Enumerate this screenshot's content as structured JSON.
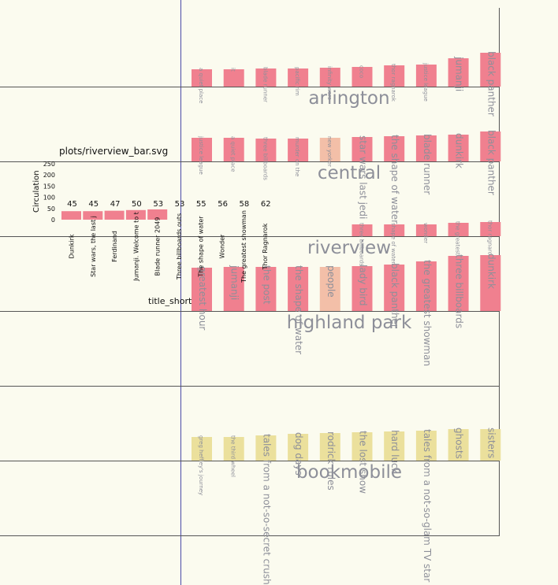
{
  "chart_data": [
    {
      "type": "bar",
      "title": "arlington",
      "color": "#f0808f",
      "categories": [
        "a quiet place",
        "it",
        "blade runner",
        "pacific rim",
        "infinity wars",
        "coco",
        "thor ragnarok",
        "justice league",
        "jumanji",
        "black panther"
      ],
      "values": [
        22,
        22,
        23,
        23,
        24,
        25,
        27,
        28,
        36,
        43
      ]
    },
    {
      "type": "bar",
      "title": "central",
      "color": "#f0808f",
      "categories": [
        "justice league",
        "a quiet place",
        "three billboards",
        "murder on the",
        "new yorker",
        "star wars last jedi",
        "the shape of water",
        "blade runner",
        "dunkirk",
        "black panther"
      ],
      "values": [
        30,
        30,
        29,
        29,
        30,
        31,
        32,
        33,
        34,
        38
      ],
      "colors": [
        "#f0808f",
        "#f0808f",
        "#f0808f",
        "#f0808f",
        "#f3bfa8",
        "#f0808f",
        "#f0808f",
        "#f0808f",
        "#f0808f",
        "#f0808f"
      ]
    },
    {
      "type": "bar",
      "title": "riverview",
      "color": "#f0808f",
      "categories": [
        "three billboards",
        "shape of water",
        "wonder",
        "the greatest showman",
        "thor ragnarok"
      ],
      "values": [
        15,
        15,
        15,
        17,
        18
      ]
    },
    {
      "type": "bar",
      "title": "highland park",
      "color": "#f0808f",
      "categories": [
        "greatest hour",
        "jumanji",
        "the post",
        "the shape of water",
        "people",
        "lady bird",
        "black panther",
        "the greatest showman",
        "three billboards",
        "dunkirk"
      ],
      "values": [
        55,
        56,
        56,
        56,
        56,
        57,
        59,
        63,
        70,
        71
      ],
      "colors": [
        "#f0808f",
        "#f0808f",
        "#f0808f",
        "#f0808f",
        "#f3bfa8",
        "#f0808f",
        "#f0808f",
        "#f0808f",
        "#f0808f",
        "#f0808f"
      ]
    },
    {
      "type": "bar",
      "title": "",
      "color": "#f0808f",
      "categories": [],
      "values": []
    },
    {
      "type": "bar",
      "title": "bookmobile",
      "color": "#ebe09c",
      "categories": [
        "greg heffley's journey",
        "the third wheel",
        "tales from a not-so-secret crush",
        "dog days",
        "rodrick rules",
        "the lost show",
        "hard luck",
        "tales from a not-so-glam TV star",
        "ghosts",
        "sisters"
      ],
      "values": [
        30,
        30,
        32,
        34,
        35,
        36,
        37,
        38,
        40,
        40
      ]
    },
    {
      "type": "bar",
      "title": "",
      "file_label": "plots/riverview_bar.svg",
      "xlabel": "title_short",
      "ylabel": "Circulation",
      "yticks": [
        0,
        50,
        100,
        150,
        200,
        250
      ],
      "ylim": [
        0,
        250
      ],
      "color": "#f0808f",
      "categories": [
        "Dunkirk",
        "Star wars, the last j",
        "Ferdinand",
        "Jumanji. Welcome to t",
        "Blade runner 2049",
        "Three billboards outs",
        "The shape of water",
        "Wonder",
        "The greatest showman",
        "Thor Ragnarok"
      ],
      "values": [
        45,
        45,
        47,
        50,
        53,
        53,
        55,
        56,
        58,
        62
      ]
    }
  ]
}
